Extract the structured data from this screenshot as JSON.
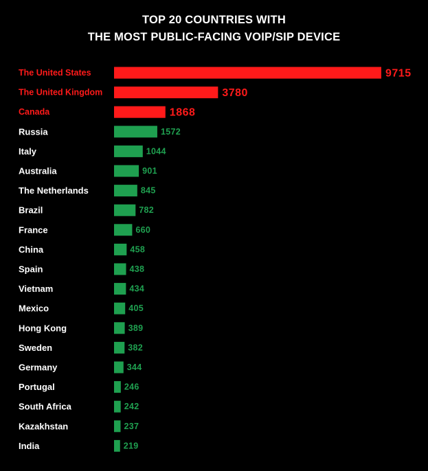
{
  "chart_data": {
    "type": "bar",
    "orientation": "horizontal",
    "title_lines": [
      "TOP 20 COUNTRIES WITH",
      "THE MOST PUBLIC-FACING VOIP/SIP DEVICE"
    ],
    "categories": [
      "The United States",
      "The United Kingdom",
      "Canada",
      "Russia",
      "Italy",
      "Australia",
      "The Netherlands",
      "Brazil",
      "France",
      "China",
      "Spain",
      "Vietnam",
      "Mexico",
      "Hong Kong",
      "Sweden",
      "Germany",
      "Portugal",
      "South Africa",
      "Kazakhstan",
      "India"
    ],
    "values": [
      9715,
      3780,
      1868,
      1572,
      1044,
      901,
      845,
      782,
      660,
      458,
      438,
      434,
      405,
      389,
      382,
      344,
      246,
      242,
      237,
      219
    ],
    "highlighted": [
      true,
      true,
      true,
      false,
      false,
      false,
      false,
      false,
      false,
      false,
      false,
      false,
      false,
      false,
      false,
      false,
      false,
      false,
      false,
      false
    ],
    "xlim": [
      0,
      9715
    ],
    "grid": false,
    "legend": "none",
    "colors": {
      "highlight": "#ff1a1a",
      "normal": "#1fa050",
      "label": "#ffffff",
      "background": "#000000"
    }
  }
}
